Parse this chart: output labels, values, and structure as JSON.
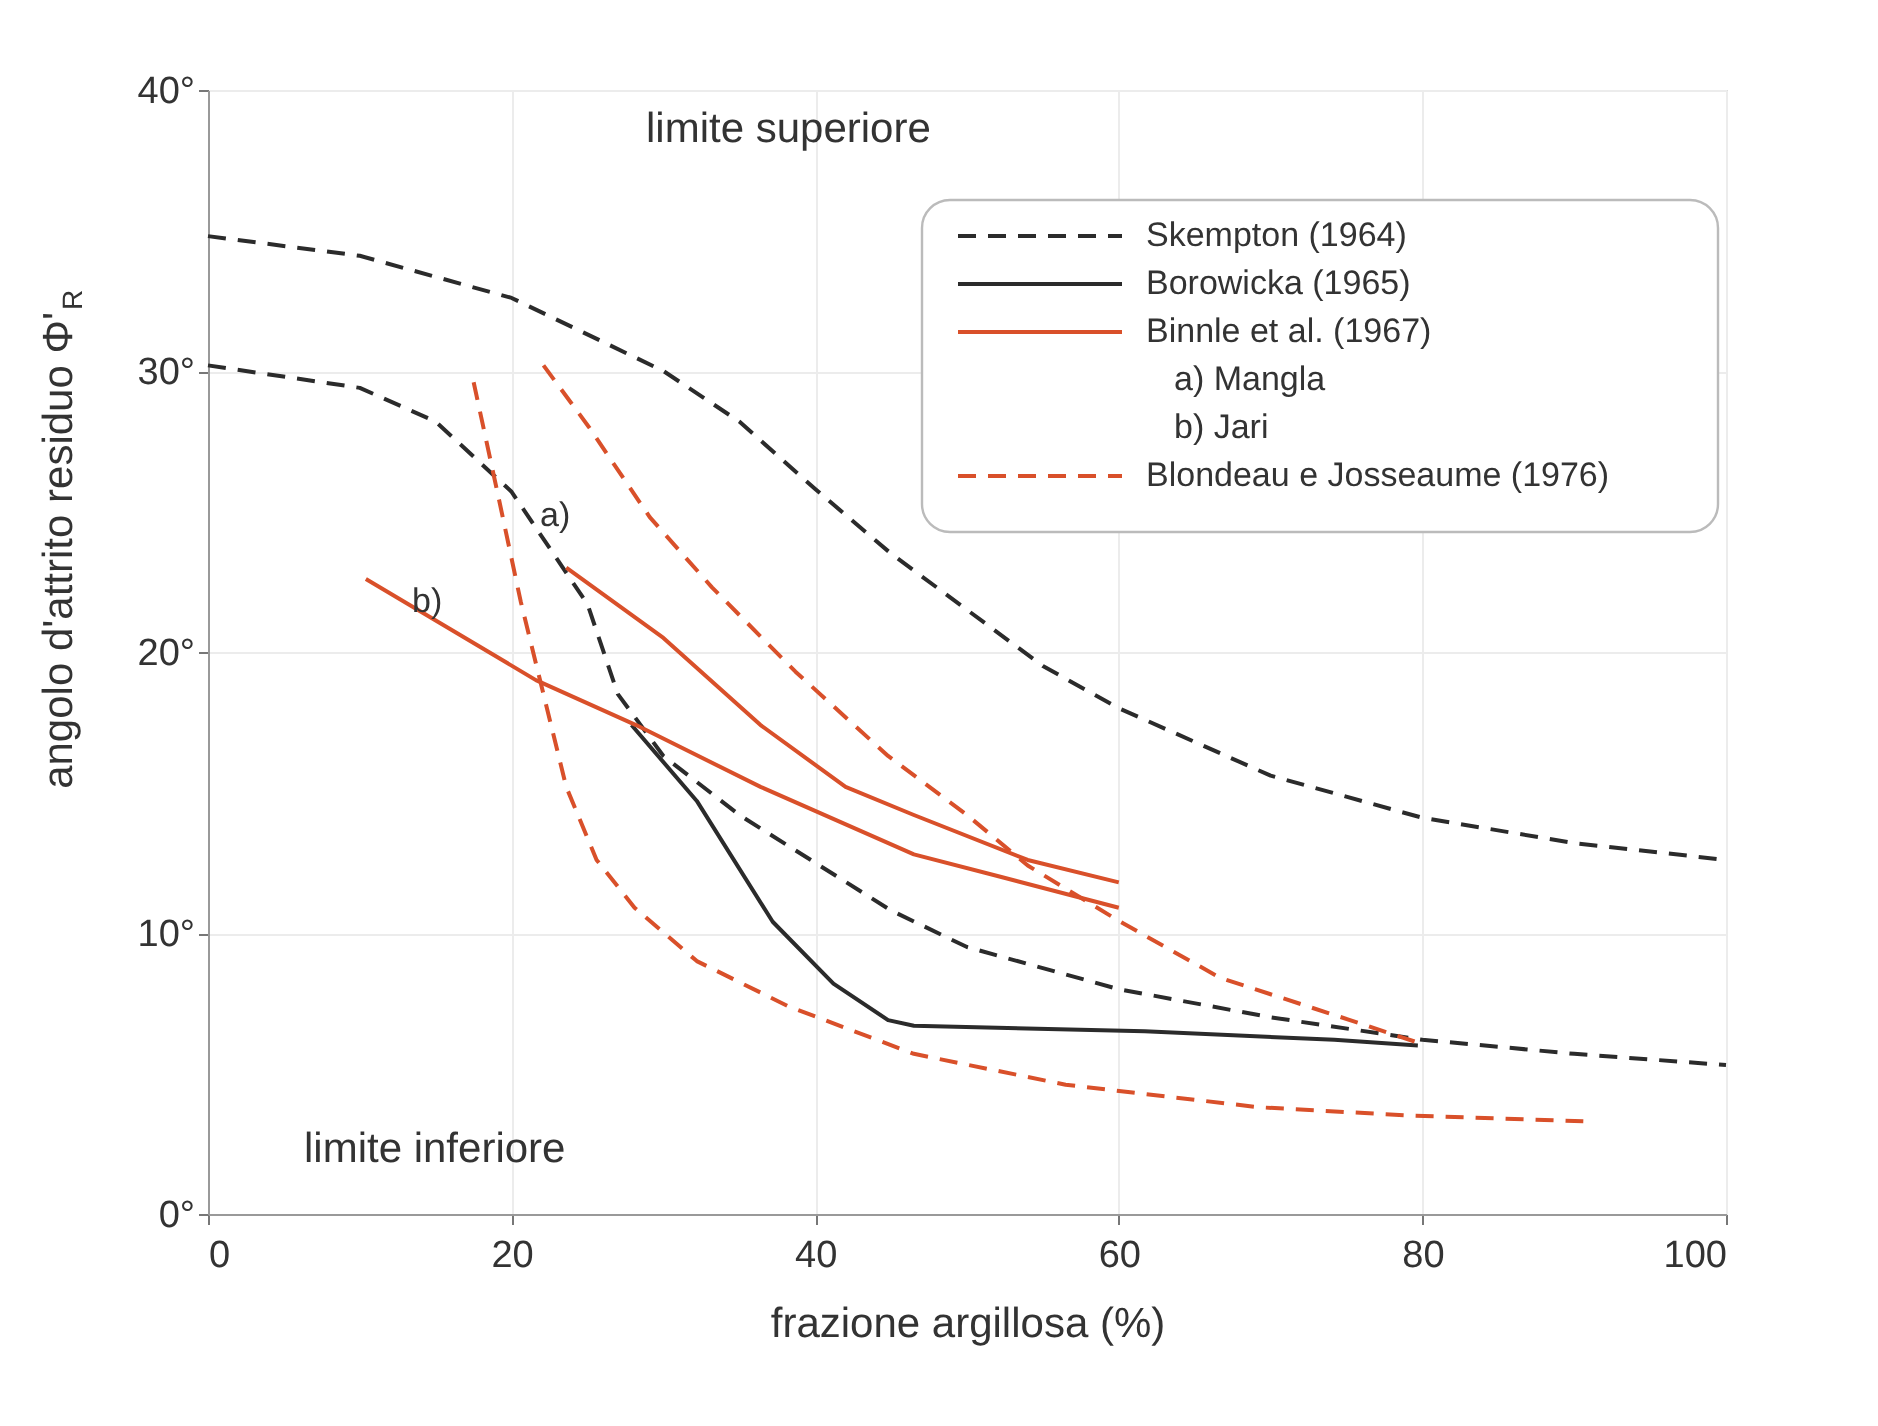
{
  "chart_data": {
    "type": "line",
    "xlabel": "frazione argillosa (%)",
    "ylabel": "angolo d'attrito residuo Φ'$_{R}$",
    "xlim": [
      0,
      100
    ],
    "ylim": [
      0,
      40
    ],
    "xticks": [
      0,
      20,
      40,
      60,
      80,
      100
    ],
    "yticks": [
      {
        "value": 0,
        "label": "0°"
      },
      {
        "value": 10,
        "label": "10°"
      },
      {
        "value": 20,
        "label": "20°"
      },
      {
        "value": 30,
        "label": "30°"
      },
      {
        "value": 40,
        "label": "40°"
      }
    ],
    "grid": true,
    "legend": "top right",
    "marker": "none",
    "annotations": [
      "limite superiore",
      "limite inferiore",
      "a) Mangla",
      "b) Jari",
      "a)",
      "b)"
    ],
    "series": [
      {
        "name": "Skempton (1964)",
        "color": "#2b2b2b",
        "line_style": "dashed",
        "x": [
          0,
          10,
          20,
          30,
          35,
          40,
          45,
          50,
          55,
          60,
          70,
          80,
          90,
          100
        ],
        "values": [
          34.8,
          34.1,
          32.6,
          30,
          28.2,
          25.8,
          23.5,
          21.5,
          19.5,
          18,
          15.6,
          14.1,
          13.2,
          12.6
        ]
      },
      {
        "color": "#2b2b2b",
        "line_style": "dashed",
        "x": [
          0,
          10,
          15,
          20,
          25,
          27,
          30,
          35,
          40,
          45,
          50,
          60,
          70,
          80,
          90,
          100
        ],
        "values": [
          30.2,
          29.4,
          28.2,
          25.7,
          21.7,
          18.5,
          16.3,
          14.2,
          12.5,
          10.8,
          9.5,
          8.0,
          7.0,
          6.2,
          5.7,
          5.3
        ]
      },
      {
        "name": "Borowicka (1965)",
        "color": "#2b2b2b",
        "line_style": "solid",
        "x": [
          27.9,
          32.2,
          37.2,
          41.2,
          44.8,
          46.5,
          61.7,
          74.2,
          79.7
        ],
        "values": [
          17.4,
          14.7,
          10.4,
          8.2,
          6.9,
          6.7,
          6.5,
          6.2,
          6.0
        ]
      },
      {
        "name": "Binnle et al. (1967)",
        "color": "#d9502a",
        "line_style": "solid",
        "x": [
          23.6,
          30,
          36.4,
          42,
          46.5,
          54,
          60
        ],
        "values": [
          23.0,
          20.5,
          17.4,
          15.2,
          14.2,
          12.6,
          11.8
        ]
      },
      {
        "color": "#d9502a",
        "line_style": "solid",
        "x": [
          10.4,
          21.6,
          28.2,
          36.4,
          46.5,
          52.2,
          60
        ],
        "values": [
          22.6,
          19.0,
          17.4,
          15.2,
          12.8,
          12.0,
          10.9
        ]
      },
      {
        "name": "Blondeau e Josseaume (1976)",
        "color": "#d9502a",
        "line_style": "dashed",
        "x": [
          22.1,
          25.1,
          29.1,
          33.2,
          38.7,
          44.8,
          50,
          54,
          60.1,
          66.7,
          75.8,
          79.7
        ],
        "values": [
          30.2,
          28.0,
          24.8,
          22.3,
          19.3,
          16.3,
          14.2,
          12.4,
          10.4,
          8.4,
          6.8,
          6.1
        ]
      },
      {
        "color": "#d9502a",
        "line_style": "dashed",
        "x": [
          17.5,
          19.1,
          20.6,
          22.1,
          23.6,
          25.6,
          28.1,
          32.2,
          38.2,
          46.5,
          56.5,
          69.2,
          79.3,
          90.6
        ],
        "values": [
          29.6,
          25.6,
          21.8,
          18.5,
          15.2,
          12.6,
          10.9,
          9.0,
          7.4,
          5.7,
          4.6,
          3.8,
          3.5,
          3.3
        ]
      }
    ]
  }
}
